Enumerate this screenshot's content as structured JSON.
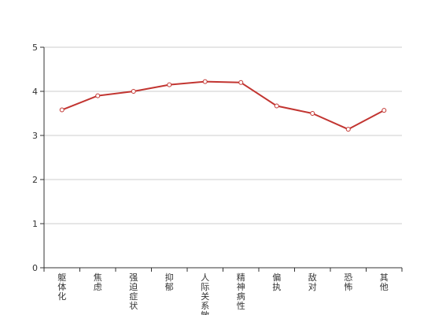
{
  "chart_data": {
    "type": "line",
    "title": "",
    "xlabel": "",
    "ylabel": "",
    "categories": [
      "躯体化",
      "焦虑",
      "强迫症状",
      "抑郁",
      "人际关系敏感",
      "精神病性",
      "偏执",
      "敌对",
      "恐怖",
      "其他"
    ],
    "series": [
      {
        "values": [
          3.58,
          3.9,
          4.0,
          4.15,
          4.22,
          4.2,
          3.67,
          3.5,
          3.14,
          3.57
        ]
      }
    ],
    "ylim": [
      0,
      5
    ],
    "yticks": [
      0,
      1,
      2,
      3,
      4,
      5
    ],
    "grid": true,
    "colors": {
      "line": "#c23531",
      "grid": "#cccccc",
      "axis": "#333333",
      "marker_fill": "#ffffff"
    }
  }
}
